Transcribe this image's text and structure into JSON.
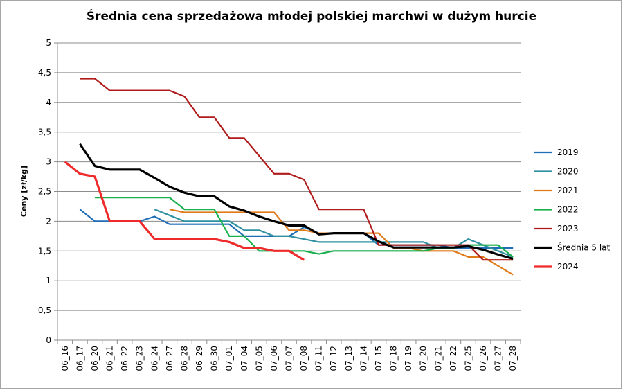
{
  "chart_data": {
    "type": "line",
    "title": "Średnia cena sprzedażowa młodej polskiej marchwi w dużym hurcie",
    "xlabel": "",
    "ylabel": "Ceny [zł/kg]",
    "ylim": [
      0,
      5
    ],
    "yticks": [
      "0",
      "0,5",
      "1",
      "1,5",
      "2",
      "2,5",
      "3",
      "3,5",
      "4",
      "4,5",
      "5"
    ],
    "grid": true,
    "legend_position": "right",
    "categories": [
      "06_16",
      "06_17",
      "06_20",
      "06_21",
      "06_22",
      "06_23",
      "06_24",
      "06_27",
      "06_28",
      "06_29",
      "06_30",
      "07_01",
      "07_04",
      "07_05",
      "07_06",
      "07_07",
      "07_08",
      "07_11",
      "07_12",
      "07_13",
      "07_14",
      "07_15",
      "07_18",
      "07_19",
      "07_20",
      "07_21",
      "07_22",
      "07_25",
      "07_26",
      "07_27",
      "07_28"
    ],
    "series": [
      {
        "name": "2019",
        "color": "#1f6eb5",
        "width": 2.2,
        "values": [
          null,
          2.2,
          2.0,
          2.0,
          2.0,
          2.0,
          2.08,
          1.95,
          1.95,
          1.95,
          1.95,
          1.95,
          1.75,
          1.75,
          1.75,
          1.75,
          1.9,
          1.8,
          1.8,
          1.8,
          1.8,
          1.6,
          1.6,
          1.6,
          1.6,
          1.6,
          1.55,
          1.55,
          1.55,
          1.55,
          1.55
        ]
      },
      {
        "name": "2020",
        "color": "#2e8fa0",
        "width": 2.2,
        "values": [
          null,
          null,
          null,
          null,
          null,
          null,
          2.2,
          2.1,
          2.0,
          2.0,
          2.0,
          2.0,
          1.85,
          1.85,
          1.75,
          1.75,
          1.7,
          1.65,
          1.65,
          1.65,
          1.65,
          1.65,
          1.65,
          1.65,
          1.65,
          1.55,
          1.55,
          1.7,
          1.6,
          1.5,
          1.4
        ]
      },
      {
        "name": "2021",
        "color": "#e07b1a",
        "width": 2.2,
        "values": [
          null,
          null,
          null,
          null,
          null,
          null,
          null,
          2.2,
          2.15,
          2.15,
          2.15,
          2.15,
          2.15,
          2.15,
          2.15,
          1.85,
          1.85,
          1.8,
          1.8,
          1.8,
          1.8,
          1.8,
          1.55,
          1.55,
          1.5,
          1.5,
          1.5,
          1.4,
          1.4,
          1.25,
          1.1
        ]
      },
      {
        "name": "2022",
        "color": "#19b04e",
        "width": 2.2,
        "values": [
          null,
          null,
          2.4,
          2.4,
          2.4,
          2.4,
          2.4,
          2.4,
          2.2,
          2.2,
          2.2,
          1.75,
          1.75,
          1.5,
          1.5,
          1.5,
          1.5,
          1.45,
          1.5,
          1.5,
          1.5,
          1.5,
          1.5,
          1.5,
          1.5,
          1.55,
          1.55,
          1.6,
          1.6,
          1.6,
          1.4
        ]
      },
      {
        "name": "2023",
        "color": "#b01c1c",
        "width": 2.2,
        "values": [
          null,
          4.4,
          4.4,
          4.2,
          4.2,
          4.2,
          4.2,
          4.2,
          4.1,
          3.75,
          3.75,
          3.4,
          3.4,
          3.1,
          2.8,
          2.8,
          2.7,
          2.2,
          2.2,
          2.2,
          2.2,
          1.6,
          1.6,
          1.6,
          1.6,
          1.6,
          1.6,
          1.6,
          1.35,
          1.35,
          1.35
        ]
      },
      {
        "name": "Średnia 5 lat",
        "color": "#000000",
        "width": 3.2,
        "values": [
          null,
          3.3,
          2.93,
          2.87,
          2.87,
          2.87,
          2.73,
          2.58,
          2.48,
          2.42,
          2.42,
          2.25,
          2.18,
          2.08,
          2.0,
          1.93,
          1.93,
          1.78,
          1.8,
          1.8,
          1.8,
          1.66,
          1.56,
          1.56,
          1.56,
          1.56,
          1.56,
          1.58,
          1.52,
          1.44,
          1.37
        ]
      },
      {
        "name": "2024",
        "color": "#ee2a2a",
        "width": 3.2,
        "values": [
          3.0,
          2.8,
          2.75,
          2.0,
          2.0,
          2.0,
          1.7,
          1.7,
          1.7,
          1.7,
          1.7,
          1.65,
          1.55,
          1.55,
          1.5,
          1.5,
          1.35,
          null,
          null,
          null,
          null,
          null,
          null,
          null,
          null,
          null,
          null,
          null,
          null,
          null,
          null
        ]
      }
    ]
  }
}
